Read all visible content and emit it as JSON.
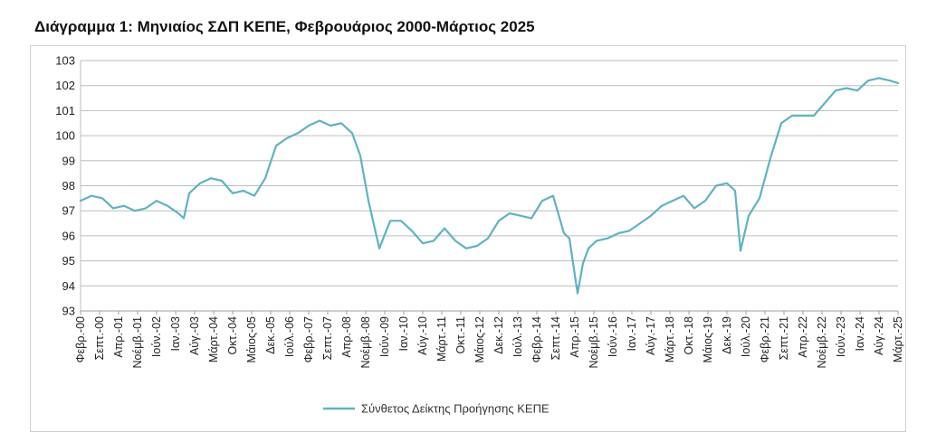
{
  "chart_data": {
    "type": "line",
    "title": "Διάγραμμα 1: Μηνιαίος ΣΔΠ ΚΕΠΕ, Φεβρουάριος 2000-Μάρτιος 2025",
    "xlabel": "",
    "ylabel": "",
    "ylim": [
      93,
      103
    ],
    "yticks": [
      93,
      94,
      95,
      96,
      97,
      98,
      99,
      100,
      101,
      102,
      103
    ],
    "grid": true,
    "legend_position": "bottom",
    "line_color": "#5fb3c0",
    "x_start": "2000-02",
    "x_end": "2025-03",
    "x_tick_labels": [
      "Φεβρ.-00",
      "Σεπτ.-00",
      "Απρ.-01",
      "Νοέμβ.-01",
      "Ιούν.-02",
      "Ιαν.-03",
      "Αύγ.-03",
      "Μάρτ.-04",
      "Οκτ.-04",
      "Μάιος-05",
      "Δεκ.-05",
      "Ιούλ.-06",
      "Φεβρ.-07",
      "Σεπτ.-07",
      "Απρ.-08",
      "Νοέμβ.-08",
      "Ιούν.-09",
      "Ιαν.-10",
      "Αύγ.-10",
      "Μάρτ.-11",
      "Οκτ.-11",
      "Μάιος-12",
      "Δεκ.-12",
      "Ιούλ.-13",
      "Φεβρ.-14",
      "Σεπτ.-14",
      "Απρ.-15",
      "Νοέμβ.-15",
      "Ιούν.-16",
      "Ιαν.-17",
      "Αύγ.-17",
      "Μάρτ.-18",
      "Οκτ.-18",
      "Μάιος-19",
      "Δεκ.-19",
      "Ιούλ.-20",
      "Φεβρ.-21",
      "Σεπτ.-21",
      "Απρ.-22",
      "Νοέμβ.-22",
      "Ιούν.-23",
      "Ιαν.-24",
      "Αύγ.-24",
      "Μάρτ.-25"
    ],
    "series": [
      {
        "name": "Σύνθετος Δείκτης Προήγησης ΚΕΠΕ",
        "x": [
          "2000-02",
          "2000-06",
          "2000-10",
          "2001-02",
          "2001-06",
          "2001-10",
          "2002-02",
          "2002-06",
          "2002-10",
          "2003-02",
          "2003-04",
          "2003-06",
          "2003-10",
          "2004-02",
          "2004-06",
          "2004-10",
          "2005-02",
          "2005-06",
          "2005-10",
          "2006-02",
          "2006-06",
          "2006-10",
          "2007-02",
          "2007-06",
          "2007-10",
          "2008-02",
          "2008-06",
          "2008-09",
          "2008-12",
          "2009-04",
          "2009-08",
          "2009-12",
          "2010-04",
          "2010-08",
          "2010-12",
          "2011-04",
          "2011-08",
          "2011-12",
          "2012-04",
          "2012-08",
          "2012-12",
          "2013-04",
          "2013-08",
          "2013-12",
          "2014-04",
          "2014-08",
          "2014-12",
          "2015-02",
          "2015-05",
          "2015-07",
          "2015-09",
          "2015-12",
          "2016-04",
          "2016-08",
          "2016-12",
          "2017-04",
          "2017-08",
          "2017-12",
          "2018-04",
          "2018-08",
          "2018-12",
          "2019-04",
          "2019-08",
          "2019-12",
          "2020-03",
          "2020-05",
          "2020-08",
          "2020-12",
          "2021-04",
          "2021-08",
          "2021-12",
          "2022-04",
          "2022-08",
          "2022-12",
          "2023-04",
          "2023-08",
          "2023-12",
          "2024-04",
          "2024-08",
          "2024-12",
          "2025-03"
        ],
        "values": [
          97.4,
          97.6,
          97.5,
          97.1,
          97.2,
          97.0,
          97.1,
          97.4,
          97.2,
          96.9,
          96.7,
          97.7,
          98.1,
          98.3,
          98.2,
          97.7,
          97.8,
          97.6,
          98.3,
          99.6,
          99.9,
          100.1,
          100.4,
          100.6,
          100.4,
          100.5,
          100.1,
          99.2,
          97.4,
          95.5,
          96.6,
          96.6,
          96.2,
          95.7,
          95.8,
          96.3,
          95.8,
          95.5,
          95.6,
          95.9,
          96.6,
          96.9,
          96.8,
          96.7,
          97.4,
          97.6,
          96.1,
          95.9,
          93.7,
          94.9,
          95.5,
          95.8,
          95.9,
          96.1,
          96.2,
          96.5,
          96.8,
          97.2,
          97.4,
          97.6,
          97.1,
          97.4,
          98.0,
          98.1,
          97.8,
          95.4,
          96.8,
          97.5,
          99.1,
          100.5,
          100.8,
          100.8,
          100.8,
          101.3,
          101.8,
          101.9,
          101.8,
          102.2,
          102.3,
          102.2,
          102.1
        ]
      }
    ]
  }
}
